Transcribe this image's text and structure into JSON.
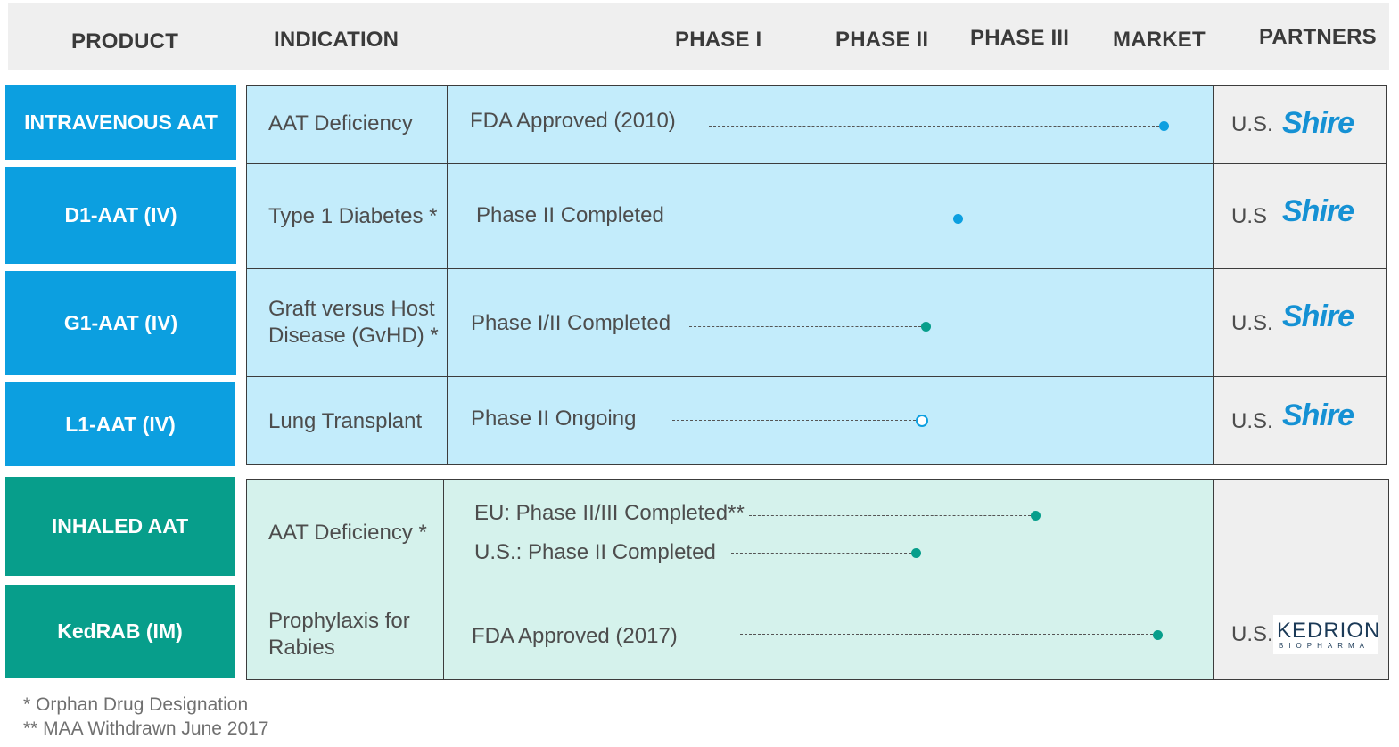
{
  "headers": {
    "product": "PRODUCT",
    "indication": "INDICATION",
    "phase1": "PHASE I",
    "phase2": "PHASE II",
    "phase3": "PHASE III",
    "market": "MARKET",
    "partners": "PARTNERS"
  },
  "rows": [
    {
      "product": "INTRAVENOUS AAT",
      "indication": "AAT Deficiency",
      "status": "FDA Approved (2010)",
      "partner_region": "U.S.",
      "partner_logo": "Shire"
    },
    {
      "product": "D1-AAT (IV)",
      "indication": "Type 1 Diabetes *",
      "status": "Phase II Completed",
      "partner_region": "U.S",
      "partner_logo": "Shire"
    },
    {
      "product": "G1-AAT (IV)",
      "indication_line1": "Graft versus Host",
      "indication_line2": "Disease (GvHD) *",
      "status": "Phase I/II Completed",
      "partner_region": "U.S.",
      "partner_logo": "Shire"
    },
    {
      "product": "L1-AAT (IV)",
      "indication": "Lung Transplant",
      "status": "Phase II Ongoing",
      "partner_region": "U.S.",
      "partner_logo": "Shire"
    },
    {
      "product": "INHALED AAT",
      "indication": "AAT Deficiency *",
      "status_eu": "EU: Phase II/III Completed**",
      "status_us": "U.S.: Phase II Completed"
    },
    {
      "product": "KedRAB (IM)",
      "indication_line1": "Prophylaxis for",
      "indication_line2": "Rabies",
      "status": "FDA Approved (2017)",
      "partner_region": "U.S.",
      "partner_logo": "KEDRION",
      "partner_logo_sub": "BIOPHARMA"
    }
  ],
  "footnotes": {
    "one": "*  Orphan Drug Designation",
    "two": "** MAA Withdrawn June 2017"
  },
  "colors": {
    "iv_product": "#0c9fe0",
    "inhaled_product": "#079e8b",
    "iv_row_bg": "#c3ecfb",
    "inhaled_row_bg": "#d5f2ec",
    "shire_logo": "#1591d4"
  },
  "markers": {
    "completed": "filled-dot",
    "ongoing": "hollow-dot"
  }
}
